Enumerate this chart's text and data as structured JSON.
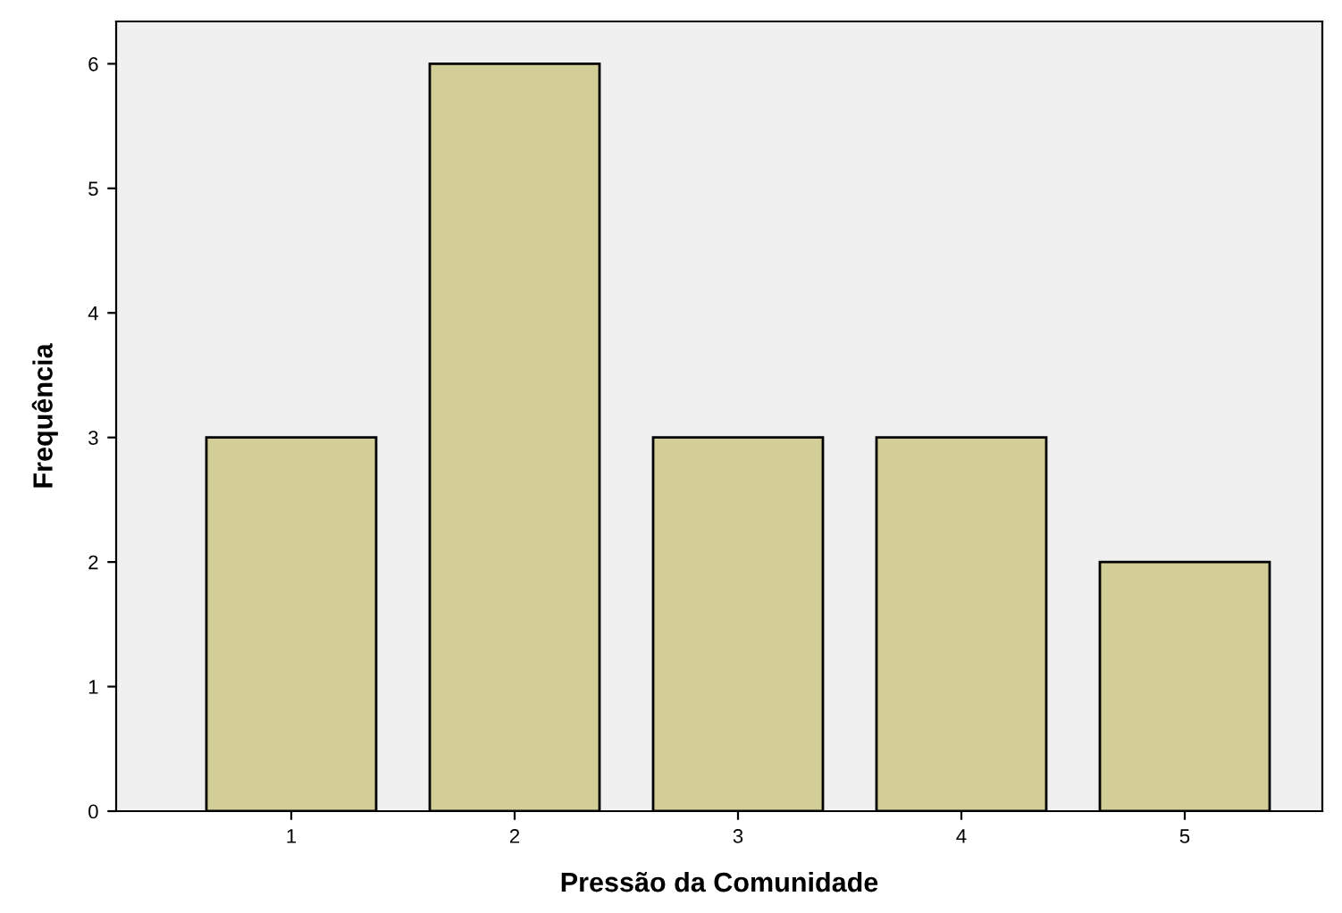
{
  "chart_data": {
    "type": "bar",
    "xlabel": "Pressão da Comunidade",
    "ylabel": "Frequência",
    "categories": [
      "1",
      "2",
      "3",
      "4",
      "5"
    ],
    "values": [
      3,
      6,
      3,
      3,
      2
    ],
    "color": "#d3ce98",
    "ylim": [
      0,
      6.34
    ],
    "yticks": [
      0,
      1,
      2,
      3,
      4,
      5,
      6
    ],
    "grid": false,
    "legend": false
  }
}
